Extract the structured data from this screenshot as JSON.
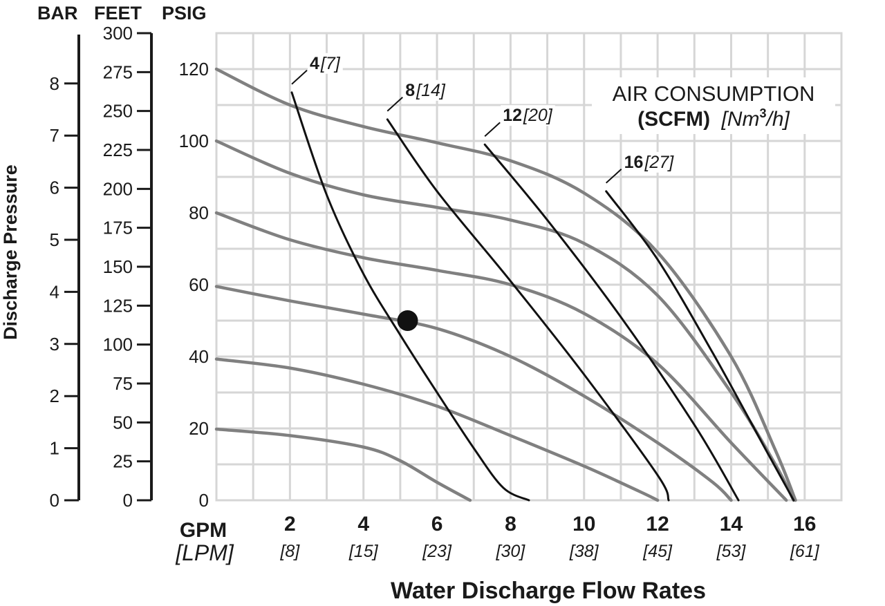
{
  "chart_data": {
    "type": "line",
    "xlabel": "Water Discharge Flow Rates",
    "ylabel": "Discharge Pressure",
    "x_unit_primary": "GPM",
    "x_unit_secondary": "[LPM]",
    "x_ticks": [
      {
        "value": 2,
        "label": "2",
        "sub": "[8]"
      },
      {
        "value": 4,
        "label": "4",
        "sub": "[15]"
      },
      {
        "value": 6,
        "label": "6",
        "sub": "[23]"
      },
      {
        "value": 8,
        "label": "8",
        "sub": "[30]"
      },
      {
        "value": 10,
        "label": "10",
        "sub": "[38]"
      },
      {
        "value": 12,
        "label": "12",
        "sub": "[45]"
      },
      {
        "value": 14,
        "label": "14",
        "sub": "[53]"
      },
      {
        "value": 16,
        "label": "16",
        "sub": "[61]"
      }
    ],
    "xlim": [
      0,
      17
    ],
    "ylim": [
      0,
      130
    ],
    "grid": true,
    "y_axes": {
      "psig": {
        "header": "PSIG",
        "ticks": [
          "0",
          "20",
          "40",
          "60",
          "80",
          "100",
          "120"
        ]
      },
      "feet": {
        "header": "FEET",
        "ticks": [
          "0",
          "25",
          "50",
          "75",
          "100",
          "125",
          "150",
          "175",
          "200",
          "225",
          "250",
          "275",
          "300"
        ]
      },
      "bar": {
        "header": "BAR",
        "ticks": [
          "0",
          "1",
          "2",
          "3",
          "4",
          "5",
          "6",
          "7",
          "8"
        ]
      }
    },
    "legend": {
      "title": "AIR CONSUMPTION",
      "units_bold": "(SCFM)",
      "units_italic": "[Nm",
      "units_sup": "3",
      "units_tail": "/h]",
      "placement": "top-right"
    },
    "pressure_curves_color": "#808080",
    "air_lines_color": "#111111",
    "pressure_curves": [
      {
        "points": [
          [
            0,
            19.8
          ],
          [
            2,
            18
          ],
          [
            4,
            14.8
          ],
          [
            5,
            11
          ],
          [
            6,
            5
          ],
          [
            6.9,
            0
          ]
        ]
      },
      {
        "points": [
          [
            0,
            39.3
          ],
          [
            2,
            36.8
          ],
          [
            4,
            32.3
          ],
          [
            6,
            26.2
          ],
          [
            8,
            18
          ],
          [
            10,
            9.5
          ],
          [
            11.5,
            2.5
          ],
          [
            12,
            0
          ]
        ]
      },
      {
        "points": [
          [
            0,
            59.5
          ],
          [
            2,
            55.5
          ],
          [
            4,
            51.8
          ],
          [
            6,
            47.8
          ],
          [
            8,
            40
          ],
          [
            10,
            29
          ],
          [
            12,
            16
          ],
          [
            13.5,
            5
          ],
          [
            14,
            0
          ]
        ]
      },
      {
        "points": [
          [
            0,
            80
          ],
          [
            2,
            72.5
          ],
          [
            4,
            67.5
          ],
          [
            6,
            64
          ],
          [
            8,
            60
          ],
          [
            10,
            52
          ],
          [
            12,
            38
          ],
          [
            14,
            16
          ],
          [
            15.5,
            0
          ]
        ]
      },
      {
        "points": [
          [
            0,
            100
          ],
          [
            2,
            91
          ],
          [
            4,
            85
          ],
          [
            6,
            81.5
          ],
          [
            8,
            78
          ],
          [
            10,
            71.5
          ],
          [
            12,
            57
          ],
          [
            14,
            30
          ],
          [
            15.2,
            10
          ],
          [
            15.7,
            0
          ]
        ]
      },
      {
        "points": [
          [
            0,
            120
          ],
          [
            2,
            110
          ],
          [
            4,
            104
          ],
          [
            6,
            99.5
          ],
          [
            8,
            94.5
          ],
          [
            10,
            85.5
          ],
          [
            12,
            69
          ],
          [
            14,
            40
          ],
          [
            15.2,
            14
          ],
          [
            15.75,
            0
          ]
        ]
      }
    ],
    "air_lines": [
      {
        "label_bold": "4",
        "label_italic": "[7]",
        "points": [
          [
            2.05,
            113.5
          ],
          [
            3,
            85
          ],
          [
            4,
            63
          ],
          [
            5,
            46
          ],
          [
            6,
            30
          ],
          [
            7,
            14.5
          ],
          [
            7.8,
            3.5
          ],
          [
            8.5,
            0
          ]
        ]
      },
      {
        "label_bold": "8",
        "label_italic": "[14]",
        "points": [
          [
            4.65,
            106
          ],
          [
            6,
            86
          ],
          [
            8,
            61
          ],
          [
            10,
            35
          ],
          [
            12,
            7
          ],
          [
            12.3,
            0
          ]
        ]
      },
      {
        "label_bold": "12",
        "label_italic": "[20]",
        "points": [
          [
            7.3,
            99
          ],
          [
            9,
            78
          ],
          [
            11,
            51
          ],
          [
            13,
            21
          ],
          [
            14.2,
            0
          ]
        ]
      },
      {
        "label_bold": "16",
        "label_italic": "[27]",
        "points": [
          [
            10.6,
            86
          ],
          [
            12,
            67
          ],
          [
            13.5,
            41
          ],
          [
            15,
            13
          ],
          [
            15.7,
            0
          ]
        ]
      }
    ],
    "marker": {
      "x": 5.2,
      "y": 50,
      "color": "#111111"
    }
  }
}
